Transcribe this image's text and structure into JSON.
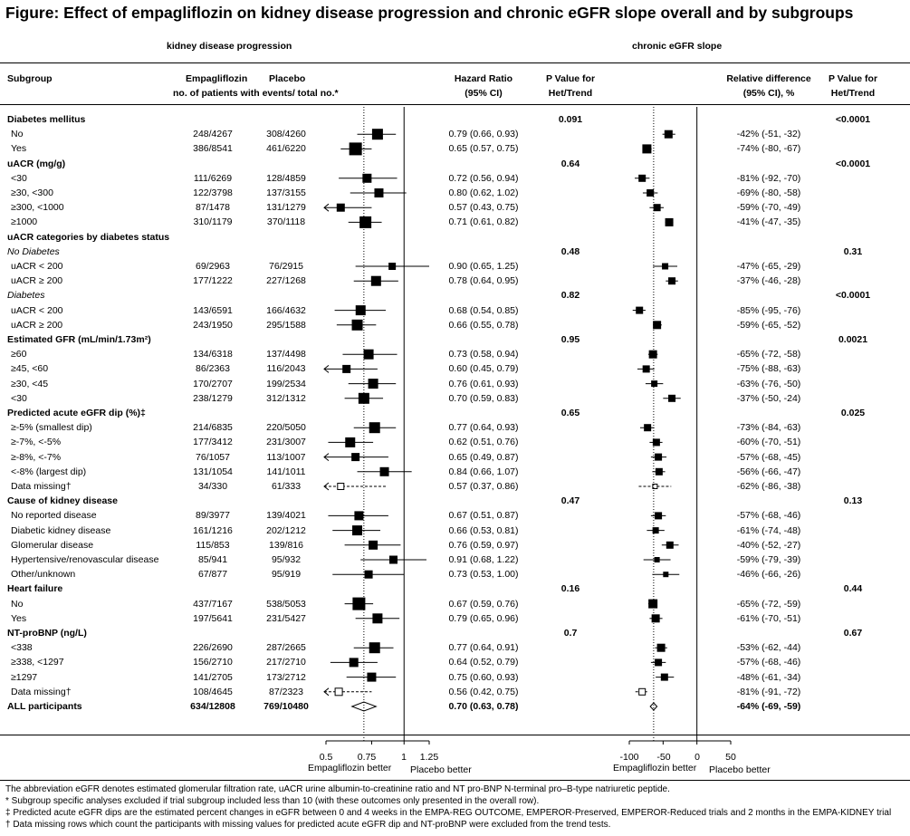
{
  "title": "Figure: Effect of empagliflozin on kidney disease progression and chronic eGFR slope overall and by subgroups",
  "panel_left_title": "kidney disease progression",
  "panel_right_title": "chronic eGFR slope",
  "headers": {
    "subgroup": "Subgroup",
    "empa": "Empagliflozin",
    "placebo": "Placebo",
    "events_sub": "no. of patients with events/ total no.*",
    "hr_line1": "Hazard Ratio",
    "hr_line2": "(95% CI)",
    "p_line1": "P Value for",
    "p_line2": "Het/Trend",
    "rel_line1": "Relative difference",
    "rel_line2": "(95% CI), %",
    "p2_line1": "P Value for",
    "p2_line2": "Het/Trend"
  },
  "left_axis": {
    "ticks": [
      "0.5",
      "0.75",
      "1",
      "1.25"
    ],
    "tick_values": [
      0.5,
      0.75,
      1,
      1.25
    ],
    "range": [
      0.5,
      1.25
    ],
    "log_scale": true,
    "reference_value": 1,
    "overall_dotted_value": 0.7,
    "favours_left": "Empagliflozin better",
    "favours_right": "Placebo better"
  },
  "right_axis": {
    "ticks": [
      "-100",
      "-50",
      "0",
      "50"
    ],
    "tick_values": [
      -100,
      -50,
      0,
      50
    ],
    "range": [
      -100,
      50
    ],
    "reference_value": 0,
    "overall_dotted_value": -64,
    "favours_left": "Empagliflozin better",
    "favours_right": "Placebo better"
  },
  "rows": [
    {
      "type": "section",
      "label": "Diabetes mellitus",
      "p1": "0.091",
      "p2": "<0.0001"
    },
    {
      "type": "data",
      "label": "No",
      "empa": "248/4267",
      "placebo": "308/4260",
      "hr_text": "0.79 (0.66, 0.93)",
      "hr": 0.79,
      "lo": 0.66,
      "hi": 0.93,
      "size": 11,
      "rd_text": "-42% (-51, -32)",
      "rd": -42,
      "rlo": -51,
      "rhi": -32,
      "rsize": 8
    },
    {
      "type": "data",
      "label": "Yes",
      "empa": "386/8541",
      "placebo": "461/6220",
      "hr_text": "0.65 (0.57, 0.75)",
      "hr": 0.65,
      "lo": 0.57,
      "hi": 0.75,
      "size": 13,
      "rd_text": "-74% (-80, -67)",
      "rd": -74,
      "rlo": -80,
      "rhi": -67,
      "rsize": 9
    },
    {
      "type": "section",
      "label": "uACR (mg/g)",
      "p1": "0.64",
      "p2": "<0.0001"
    },
    {
      "type": "data",
      "label": "<30",
      "empa": "111/6269",
      "placebo": "128/4859",
      "hr_text": "0.72 (0.56, 0.94)",
      "hr": 0.72,
      "lo": 0.56,
      "hi": 0.94,
      "size": 9,
      "rd_text": "-81% (-92, -70)",
      "rd": -81,
      "rlo": -92,
      "rhi": -70,
      "rsize": 7
    },
    {
      "type": "data",
      "label": "≥30, <300",
      "empa": "122/3798",
      "placebo": "137/3155",
      "hr_text": "0.80 (0.62, 1.02)",
      "hr": 0.8,
      "lo": 0.62,
      "hi": 1.02,
      "size": 9,
      "rd_text": "-69% (-80, -58)",
      "rd": -69,
      "rlo": -80,
      "rhi": -58,
      "rsize": 7
    },
    {
      "type": "data",
      "label": "≥300, <1000",
      "empa": "87/1478",
      "placebo": "131/1279",
      "hr_text": "0.57 (0.43, 0.75)",
      "hr": 0.57,
      "lo": 0.43,
      "hi": 0.75,
      "size": 8,
      "arrow": true,
      "rd_text": "-59% (-70, -49)",
      "rd": -59,
      "rlo": -70,
      "rhi": -49,
      "rsize": 7
    },
    {
      "type": "data",
      "label": "≥1000",
      "empa": "310/1179",
      "placebo": "370/1118",
      "hr_text": "0.71 (0.61, 0.82)",
      "hr": 0.71,
      "lo": 0.61,
      "hi": 0.82,
      "size": 12,
      "rd_text": "-41% (-47, -35)",
      "rd": -41,
      "rlo": -47,
      "rhi": -35,
      "rsize": 8
    },
    {
      "type": "section",
      "label": "uACR categories by diabetes status"
    },
    {
      "type": "subsection",
      "label": "No Diabetes",
      "p1": "0.48",
      "p2": "0.31"
    },
    {
      "type": "data",
      "label": "uACR < 200",
      "empa": "69/2963",
      "placebo": "76/2915",
      "hr_text": "0.90 (0.65, 1.25)",
      "hr": 0.9,
      "lo": 0.65,
      "hi": 1.25,
      "size": 7,
      "rd_text": "-47% (-65, -29)",
      "rd": -47,
      "rlo": -65,
      "rhi": -29,
      "rsize": 6
    },
    {
      "type": "data",
      "label": "uACR ≥ 200",
      "empa": "177/1222",
      "placebo": "227/1268",
      "hr_text": "0.78 (0.64, 0.95)",
      "hr": 0.78,
      "lo": 0.64,
      "hi": 0.95,
      "size": 10,
      "rd_text": "-37% (-46, -28)",
      "rd": -37,
      "rlo": -46,
      "rhi": -28,
      "rsize": 7
    },
    {
      "type": "subsection",
      "label": "Diabetes",
      "p1": "0.82",
      "p2": "<0.0001"
    },
    {
      "type": "data",
      "label": "uACR < 200",
      "empa": "143/6591",
      "placebo": "166/4632",
      "hr_text": "0.68 (0.54, 0.85)",
      "hr": 0.68,
      "lo": 0.54,
      "hi": 0.85,
      "size": 10,
      "rd_text": "-85% (-95, -76)",
      "rd": -85,
      "rlo": -95,
      "rhi": -76,
      "rsize": 7
    },
    {
      "type": "data",
      "label": "uACR ≥ 200",
      "empa": "243/1950",
      "placebo": "295/1588",
      "hr_text": "0.66 (0.55, 0.78)",
      "hr": 0.66,
      "lo": 0.55,
      "hi": 0.78,
      "size": 11,
      "rd_text": "-59% (-65, -52)",
      "rd": -59,
      "rlo": -65,
      "rhi": -52,
      "rsize": 8
    },
    {
      "type": "section",
      "label": "Estimated GFR (mL/min/1.73m²)",
      "p1": "0.95",
      "p2": "0.0021"
    },
    {
      "type": "data",
      "label": "≥60",
      "empa": "134/6318",
      "placebo": "137/4498",
      "hr_text": "0.73 (0.58, 0.94)",
      "hr": 0.73,
      "lo": 0.58,
      "hi": 0.94,
      "size": 10,
      "rd_text": "-65% (-72, -58)",
      "rd": -65,
      "rlo": -72,
      "rhi": -58,
      "rsize": 8
    },
    {
      "type": "data",
      "label": "≥45, <60",
      "empa": "86/2363",
      "placebo": "116/2043",
      "hr_text": "0.60 (0.45, 0.79)",
      "hr": 0.6,
      "lo": 0.45,
      "hi": 0.79,
      "size": 8,
      "arrow": true,
      "rd_text": "-75% (-88, -63)",
      "rd": -75,
      "rlo": -88,
      "rhi": -63,
      "rsize": 7
    },
    {
      "type": "data",
      "label": "≥30, <45",
      "empa": "170/2707",
      "placebo": "199/2534",
      "hr_text": "0.76 (0.61, 0.93)",
      "hr": 0.76,
      "lo": 0.61,
      "hi": 0.93,
      "size": 10,
      "rd_text": "-63% (-76, -50)",
      "rd": -63,
      "rlo": -76,
      "rhi": -50,
      "rsize": 6
    },
    {
      "type": "data",
      "label": "<30",
      "empa": "238/1279",
      "placebo": "312/1312",
      "hr_text": "0.70 (0.59, 0.83)",
      "hr": 0.7,
      "lo": 0.59,
      "hi": 0.83,
      "size": 11,
      "rd_text": "-37% (-50, -24)",
      "rd": -37,
      "rlo": -50,
      "rhi": -24,
      "rsize": 7
    },
    {
      "type": "section",
      "label": "Predicted acute eGFR dip (%)‡",
      "p1": "0.65",
      "p2": "0.025"
    },
    {
      "type": "data",
      "label": "≥-5% (smallest dip)",
      "empa": "214/6835",
      "placebo": "220/5050",
      "hr_text": "0.77 (0.64, 0.93)",
      "hr": 0.77,
      "lo": 0.64,
      "hi": 0.93,
      "size": 11,
      "rd_text": "-73% (-84, -63)",
      "rd": -73,
      "rlo": -84,
      "rhi": -63,
      "rsize": 7
    },
    {
      "type": "data",
      "label": "≥-7%, <-5%",
      "empa": "177/3412",
      "placebo": "231/3007",
      "hr_text": "0.62 (0.51, 0.76)",
      "hr": 0.62,
      "lo": 0.51,
      "hi": 0.76,
      "size": 10,
      "rd_text": "-60% (-70, -51)",
      "rd": -60,
      "rlo": -70,
      "rhi": -51,
      "rsize": 7
    },
    {
      "type": "data",
      "label": "≥-8%, <-7%",
      "empa": "76/1057",
      "placebo": "113/1007",
      "hr_text": "0.65 (0.49, 0.87)",
      "hr": 0.65,
      "lo": 0.49,
      "hi": 0.87,
      "size": 8,
      "arrow": true,
      "rd_text": "-57% (-68, -45)",
      "rd": -57,
      "rlo": -68,
      "rhi": -45,
      "rsize": 7
    },
    {
      "type": "data",
      "label": "<-8% (largest dip)",
      "empa": "131/1054",
      "placebo": "141/1011",
      "hr_text": "0.84 (0.66, 1.07)",
      "hr": 0.84,
      "lo": 0.66,
      "hi": 1.07,
      "size": 9,
      "rd_text": "-56% (-66, -47)",
      "rd": -56,
      "rlo": -66,
      "rhi": -47,
      "rsize": 7
    },
    {
      "type": "data",
      "label": "Data missing†",
      "empa": "34/330",
      "placebo": "61/333",
      "hr_text": "0.57 (0.37, 0.86)",
      "hr": 0.57,
      "lo": 0.37,
      "hi": 0.86,
      "size": 7,
      "open": true,
      "arrow": true,
      "rd_text": "-62% (-86, -38)",
      "rd": -62,
      "rlo": -86,
      "rhi": -38,
      "rsize": 5
    },
    {
      "type": "section",
      "label": "Cause of kidney disease",
      "p1": "0.47",
      "p2": "0.13"
    },
    {
      "type": "data",
      "label": "No reported disease",
      "empa": "89/3977",
      "placebo": "139/4021",
      "hr_text": "0.67 (0.51, 0.87)",
      "hr": 0.67,
      "lo": 0.51,
      "hi": 0.87,
      "size": 9,
      "rd_text": "-57% (-68, -46)",
      "rd": -57,
      "rlo": -68,
      "rhi": -46,
      "rsize": 7
    },
    {
      "type": "data",
      "label": "Diabetic kidney disease",
      "empa": "161/1216",
      "placebo": "202/1212",
      "hr_text": "0.66 (0.53, 0.81)",
      "hr": 0.66,
      "lo": 0.53,
      "hi": 0.81,
      "size": 10,
      "rd_text": "-61% (-74, -48)",
      "rd": -61,
      "rlo": -74,
      "rhi": -48,
      "rsize": 6
    },
    {
      "type": "data",
      "label": "Glomerular disease",
      "empa": "115/853",
      "placebo": "139/816",
      "hr_text": "0.76 (0.59, 0.97)",
      "hr": 0.76,
      "lo": 0.59,
      "hi": 0.97,
      "size": 9,
      "rd_text": "-40% (-52, -27)",
      "rd": -40,
      "rlo": -52,
      "rhi": -27,
      "rsize": 7
    },
    {
      "type": "data",
      "label": "Hypertensive/renovascular disease",
      "empa": "85/941",
      "placebo": "95/932",
      "hr_text": "0.91 (0.68, 1.22)",
      "hr": 0.91,
      "lo": 0.68,
      "hi": 1.22,
      "size": 8,
      "rd_text": "-59% (-79, -39)",
      "rd": -59,
      "rlo": -79,
      "rhi": -39,
      "rsize": 5
    },
    {
      "type": "data",
      "label": "Other/unknown",
      "empa": "67/877",
      "placebo": "95/919",
      "hr_text": "0.73 (0.53, 1.00)",
      "hr": 0.73,
      "lo": 0.53,
      "hi": 1.0,
      "size": 8,
      "rd_text": "-46% (-66, -26)",
      "rd": -46,
      "rlo": -66,
      "rhi": -26,
      "rsize": 5
    },
    {
      "type": "section",
      "label": "Heart failure",
      "p1": "0.16",
      "p2": "0.44"
    },
    {
      "type": "data",
      "label": "No",
      "empa": "437/7167",
      "placebo": "538/5053",
      "hr_text": "0.67 (0.59, 0.76)",
      "hr": 0.67,
      "lo": 0.59,
      "hi": 0.76,
      "size": 13,
      "rd_text": "-65% (-72, -59)",
      "rd": -65,
      "rlo": -72,
      "rhi": -59,
      "rsize": 9
    },
    {
      "type": "data",
      "label": "Yes",
      "empa": "197/5641",
      "placebo": "231/5427",
      "hr_text": "0.79 (0.65, 0.96)",
      "hr": 0.79,
      "lo": 0.65,
      "hi": 0.96,
      "size": 10,
      "rd_text": "-61% (-70, -51)",
      "rd": -61,
      "rlo": -70,
      "rhi": -51,
      "rsize": 8
    },
    {
      "type": "section",
      "label": "NT-proBNP (ng/L)",
      "p1": "0.7",
      "p2": "0.67"
    },
    {
      "type": "data",
      "label": "<338",
      "empa": "226/2690",
      "placebo": "287/2665",
      "hr_text": "0.77 (0.64, 0.91)",
      "hr": 0.77,
      "lo": 0.64,
      "hi": 0.91,
      "size": 11,
      "rd_text": "-53% (-62, -44)",
      "rd": -53,
      "rlo": -62,
      "rhi": -44,
      "rsize": 8
    },
    {
      "type": "data",
      "label": "≥338, <1297",
      "empa": "156/2710",
      "placebo": "217/2710",
      "hr_text": "0.64 (0.52, 0.79)",
      "hr": 0.64,
      "lo": 0.52,
      "hi": 0.79,
      "size": 9,
      "rd_text": "-57% (-68, -46)",
      "rd": -57,
      "rlo": -68,
      "rhi": -46,
      "rsize": 7
    },
    {
      "type": "data",
      "label": "≥1297",
      "empa": "141/2705",
      "placebo": "173/2712",
      "hr_text": "0.75 (0.60, 0.93)",
      "hr": 0.75,
      "lo": 0.6,
      "hi": 0.93,
      "size": 9,
      "rd_text": "-48% (-61, -34)",
      "rd": -48,
      "rlo": -61,
      "rhi": -34,
      "rsize": 7
    },
    {
      "type": "data",
      "label": "Data missing†",
      "empa": "108/4645",
      "placebo": "87/2323",
      "hr_text": "0.56 (0.42, 0.75)",
      "hr": 0.56,
      "lo": 0.42,
      "hi": 0.75,
      "size": 8,
      "open": true,
      "arrow": true,
      "rd_text": "-81% (-91, -72)",
      "rd": -81,
      "rlo": -91,
      "rhi": -72,
      "rsize": 7
    },
    {
      "type": "overall",
      "label": "ALL participants",
      "empa": "634/12808",
      "placebo": "769/10480",
      "hr_text": "0.70 (0.63, 0.78)",
      "hr": 0.7,
      "lo": 0.63,
      "hi": 0.78,
      "rd_text": "-64% (-69, -59)",
      "rd": -64,
      "rlo": -69,
      "rhi": -59
    }
  ],
  "footnotes": [
    "The abbreviation eGFR denotes estimated glomerular filtration rate, uACR urine albumin-to-creatinine ratio and NT pro-BNP N-terminal pro–B-type natriuretic peptide.",
    "* Subgroup specific analyses excluded if trial subgroup included less than 10 (with these outcomes only presented in the overall row).",
    "‡ Predicted acute eGFR dips are the estimated percent changes in eGFR between 0 and 4 weeks in the EMPA-REG OUTCOME, EMPEROR-Preserved, EMPEROR-Reduced trials and 2 months in the EMPA-KIDNEY trial",
    "† Data missing rows which count the participants with missing values for predicted acute eGFR dip and NT-proBNP were excluded from the trend tests."
  ],
  "chart_data": [
    {
      "type": "forest",
      "title": "kidney disease progression",
      "xlabel": "Hazard Ratio (95% CI)",
      "xlim": [
        0.5,
        1.25
      ],
      "x_scale": "log",
      "reference_line": 1,
      "categories": [
        "Diabetes mellitus: No",
        "Diabetes mellitus: Yes",
        "uACR <30",
        "uACR ≥30, <300",
        "uACR ≥300, <1000",
        "uACR ≥1000",
        "No Diabetes uACR < 200",
        "No Diabetes uACR ≥ 200",
        "Diabetes uACR < 200",
        "Diabetes uACR ≥ 200",
        "eGFR ≥60",
        "eGFR ≥45, <60",
        "eGFR ≥30, <45",
        "eGFR <30",
        "dip ≥-5% (smallest dip)",
        "dip ≥-7%, <-5%",
        "dip ≥-8%, <-7%",
        "dip <-8% (largest dip)",
        "dip Data missing†",
        "No reported disease",
        "Diabetic kidney disease",
        "Glomerular disease",
        "Hypertensive/renovascular disease",
        "Other/unknown",
        "Heart failure: No",
        "Heart failure: Yes",
        "NT-proBNP <338",
        "NT-proBNP ≥338, <1297",
        "NT-proBNP ≥1297",
        "NT-proBNP Data missing†",
        "ALL participants"
      ],
      "values": [
        0.79,
        0.65,
        0.72,
        0.8,
        0.57,
        0.71,
        0.9,
        0.78,
        0.68,
        0.66,
        0.73,
        0.6,
        0.76,
        0.7,
        0.77,
        0.62,
        0.65,
        0.84,
        0.57,
        0.67,
        0.66,
        0.76,
        0.91,
        0.73,
        0.67,
        0.79,
        0.77,
        0.64,
        0.75,
        0.56,
        0.7
      ],
      "lower": [
        0.66,
        0.57,
        0.56,
        0.62,
        0.43,
        0.61,
        0.65,
        0.64,
        0.54,
        0.55,
        0.58,
        0.45,
        0.61,
        0.59,
        0.64,
        0.51,
        0.49,
        0.66,
        0.37,
        0.51,
        0.53,
        0.59,
        0.68,
        0.53,
        0.59,
        0.65,
        0.64,
        0.52,
        0.6,
        0.42,
        0.63
      ],
      "upper": [
        0.93,
        0.75,
        0.94,
        1.02,
        0.75,
        0.82,
        1.25,
        0.95,
        0.85,
        0.78,
        0.94,
        0.79,
        0.93,
        0.83,
        0.93,
        0.76,
        0.87,
        1.07,
        0.86,
        0.87,
        0.81,
        0.97,
        1.22,
        1.0,
        0.76,
        0.96,
        0.91,
        0.79,
        0.93,
        0.75,
        0.78
      ]
    },
    {
      "type": "forest",
      "title": "chronic eGFR slope",
      "xlabel": "Relative difference (95% CI), %",
      "xlim": [
        -100,
        50
      ],
      "reference_line": 0,
      "categories": [
        "Diabetes mellitus: No",
        "Diabetes mellitus: Yes",
        "uACR <30",
        "uACR ≥30, <300",
        "uACR ≥300, <1000",
        "uACR ≥1000",
        "No Diabetes uACR < 200",
        "No Diabetes uACR ≥ 200",
        "Diabetes uACR < 200",
        "Diabetes uACR ≥ 200",
        "eGFR ≥60",
        "eGFR ≥45, <60",
        "eGFR ≥30, <45",
        "eGFR <30",
        "dip ≥-5% (smallest dip)",
        "dip ≥-7%, <-5%",
        "dip ≥-8%, <-7%",
        "dip <-8% (largest dip)",
        "dip Data missing†",
        "No reported disease",
        "Diabetic kidney disease",
        "Glomerular disease",
        "Hypertensive/renovascular disease",
        "Other/unknown",
        "Heart failure: No",
        "Heart failure: Yes",
        "NT-proBNP <338",
        "NT-proBNP ≥338, <1297",
        "NT-proBNP ≥1297",
        "NT-proBNP Data missing†",
        "ALL participants"
      ],
      "values": [
        -42,
        -74,
        -81,
        -69,
        -59,
        -41,
        -47,
        -37,
        -85,
        -59,
        -65,
        -75,
        -63,
        -37,
        -73,
        -60,
        -57,
        -56,
        -62,
        -57,
        -61,
        -40,
        -59,
        -46,
        -65,
        -61,
        -53,
        -57,
        -48,
        -81,
        -64
      ],
      "lower": [
        -51,
        -80,
        -92,
        -80,
        -70,
        -47,
        -65,
        -46,
        -95,
        -65,
        -72,
        -88,
        -76,
        -50,
        -84,
        -70,
        -68,
        -66,
        -86,
        -68,
        -74,
        -52,
        -79,
        -66,
        -72,
        -70,
        -62,
        -68,
        -61,
        -91,
        -69
      ],
      "upper": [
        -32,
        -67,
        -70,
        -58,
        -49,
        -35,
        -29,
        -28,
        -76,
        -52,
        -58,
        -63,
        -50,
        -24,
        -63,
        -51,
        -45,
        -47,
        -38,
        -46,
        -48,
        -27,
        -39,
        -26,
        -59,
        -51,
        -44,
        -46,
        -34,
        -72,
        -59
      ]
    }
  ]
}
